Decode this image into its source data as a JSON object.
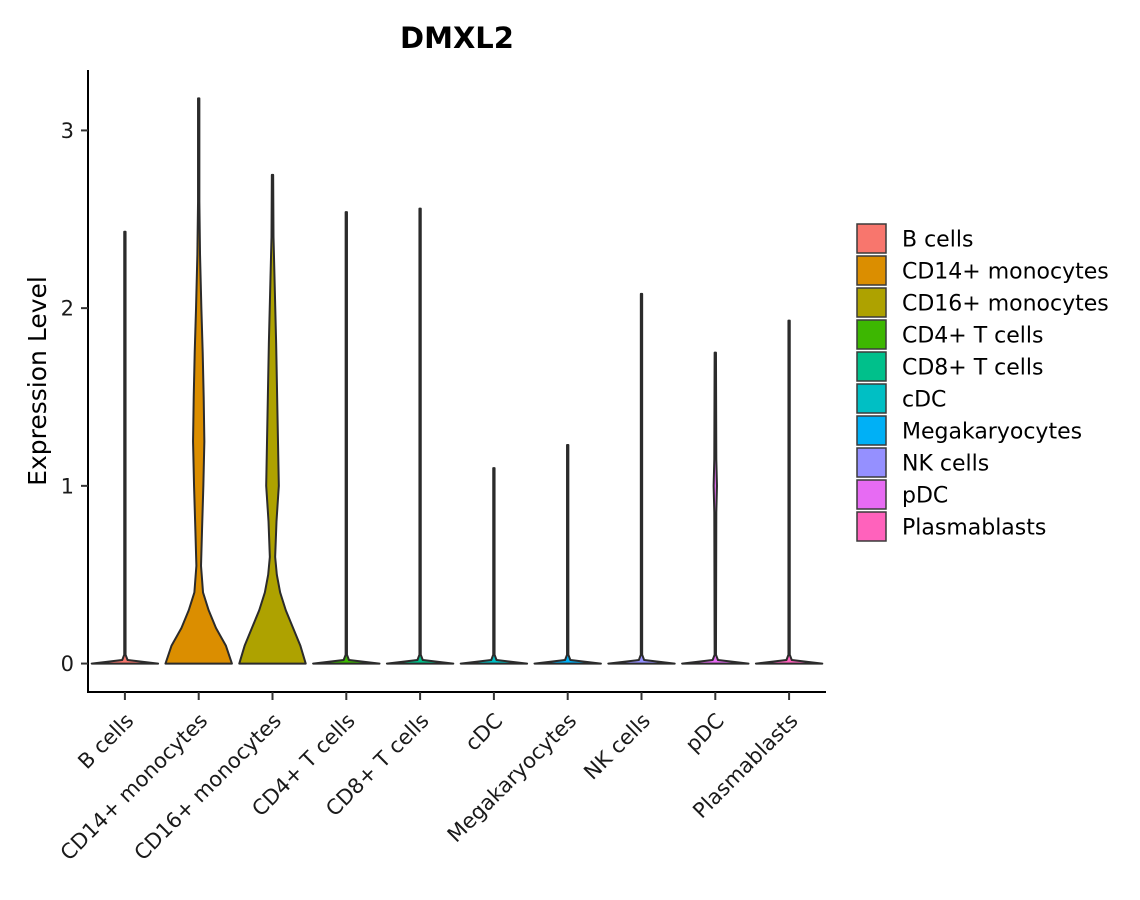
{
  "chart_data": {
    "type": "violin",
    "title": "DMXL2",
    "xlabel": "",
    "ylabel": "Expression Level",
    "ylim": [
      -0.16,
      3.34
    ],
    "yticks": [
      0,
      1,
      2,
      3
    ],
    "grid": false,
    "legend_position": "right",
    "categories": [
      "B cells",
      "CD14+ monocytes",
      "CD16+ monocytes",
      "CD4+ T cells",
      "CD8+ T cells",
      "cDC",
      "Megakaryocytes",
      "NK cells",
      "pDC",
      "Plasmablasts"
    ],
    "colors": [
      "#F8766D",
      "#DB8E00",
      "#AEA200",
      "#3DB701",
      "#00C08B",
      "#00BFC4",
      "#00B0F6",
      "#9590FF",
      "#E76BF3",
      "#FF62BC"
    ],
    "max_values": [
      2.43,
      3.18,
      2.75,
      2.54,
      2.56,
      1.1,
      1.23,
      2.08,
      1.75,
      1.93
    ],
    "density_profiles": [
      [
        [
          0,
          1
        ],
        [
          0.02,
          0.08
        ],
        [
          0.05,
          0.02
        ],
        [
          2.43,
          0.02
        ]
      ],
      [
        [
          0,
          1
        ],
        [
          0.1,
          0.82
        ],
        [
          0.2,
          0.52
        ],
        [
          0.3,
          0.3
        ],
        [
          0.4,
          0.13
        ],
        [
          0.55,
          0.07
        ],
        [
          0.75,
          0.1
        ],
        [
          1.0,
          0.14
        ],
        [
          1.25,
          0.17
        ],
        [
          1.5,
          0.15
        ],
        [
          1.75,
          0.12
        ],
        [
          2.0,
          0.08
        ],
        [
          2.3,
          0.04
        ],
        [
          2.6,
          0.02
        ],
        [
          3.18,
          0.02
        ]
      ],
      [
        [
          0,
          1
        ],
        [
          0.1,
          0.84
        ],
        [
          0.2,
          0.62
        ],
        [
          0.3,
          0.4
        ],
        [
          0.4,
          0.23
        ],
        [
          0.5,
          0.13
        ],
        [
          0.6,
          0.08
        ],
        [
          0.8,
          0.12
        ],
        [
          1.0,
          0.19
        ],
        [
          1.2,
          0.17
        ],
        [
          1.5,
          0.14
        ],
        [
          1.8,
          0.11
        ],
        [
          2.1,
          0.07
        ],
        [
          2.4,
          0.03
        ],
        [
          2.75,
          0.02
        ]
      ],
      [
        [
          0,
          1
        ],
        [
          0.02,
          0.08
        ],
        [
          0.05,
          0.02
        ],
        [
          2.54,
          0.02
        ]
      ],
      [
        [
          0,
          1
        ],
        [
          0.02,
          0.08
        ],
        [
          0.05,
          0.02
        ],
        [
          2.56,
          0.02
        ]
      ],
      [
        [
          0,
          1
        ],
        [
          0.02,
          0.08
        ],
        [
          0.05,
          0.02
        ],
        [
          1.1,
          0.02
        ]
      ],
      [
        [
          0,
          1
        ],
        [
          0.02,
          0.08
        ],
        [
          0.05,
          0.02
        ],
        [
          1.23,
          0.02
        ]
      ],
      [
        [
          0,
          1
        ],
        [
          0.02,
          0.08
        ],
        [
          0.05,
          0.02
        ],
        [
          2.08,
          0.02
        ]
      ],
      [
        [
          0,
          1
        ],
        [
          0.02,
          0.08
        ],
        [
          0.05,
          0.02
        ],
        [
          0.85,
          0.03
        ],
        [
          1.0,
          0.05
        ],
        [
          1.15,
          0.03
        ],
        [
          1.75,
          0.02
        ]
      ],
      [
        [
          0,
          1
        ],
        [
          0.02,
          0.08
        ],
        [
          0.05,
          0.02
        ],
        [
          1.93,
          0.02
        ]
      ]
    ]
  }
}
